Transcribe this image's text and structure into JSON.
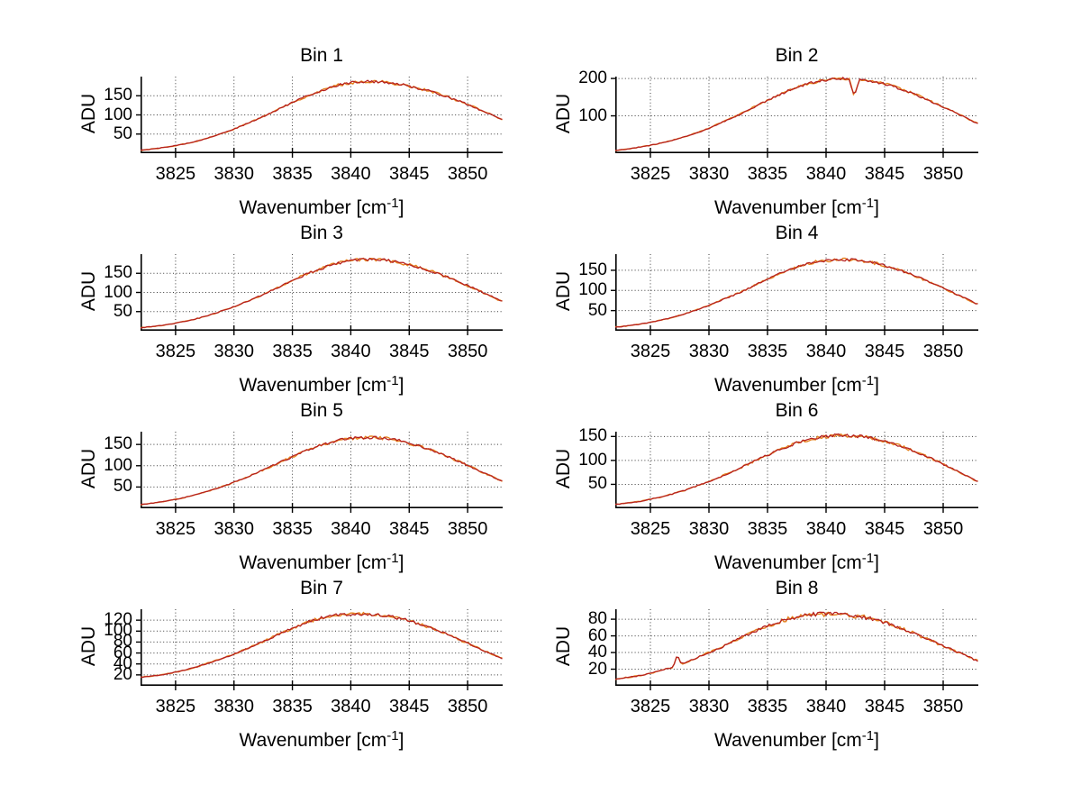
{
  "figure": {
    "background": "#ffffff",
    "line_color": "#b51f1f",
    "under_line_color": "#e5821e",
    "grid_color": "#3a3a3a",
    "axis_color": "#000000"
  },
  "labels": {
    "ylabel": "ADU",
    "xlabel_main": "Wavenumber [cm",
    "xlabel_sup": "-1",
    "xlabel_close": "]"
  },
  "chart_data": [
    {
      "type": "line",
      "title": "Bin 1",
      "ylabel": "ADU",
      "xlabel": "Wavenumber [cm^-1]",
      "xlim": [
        3822,
        3853
      ],
      "ylim": [
        0,
        200
      ],
      "xticks": [
        3825,
        3830,
        3835,
        3840,
        3845,
        3850
      ],
      "yticks": [
        50,
        100,
        150
      ],
      "grid": true,
      "x_start": 3822,
      "x_step": 1,
      "noise": 2.6,
      "spikes": [],
      "values": [
        8,
        11,
        15,
        20,
        26,
        33,
        42,
        52,
        63,
        76,
        89,
        103,
        118,
        132,
        146,
        158,
        169,
        178,
        184,
        187,
        187,
        185,
        181,
        175,
        168,
        160,
        150,
        139,
        127,
        114,
        101,
        88
      ]
    },
    {
      "type": "line",
      "title": "Bin 2",
      "ylabel": "ADU",
      "xlabel": "Wavenumber [cm^-1]",
      "xlim": [
        3822,
        3853
      ],
      "ylim": [
        0,
        205
      ],
      "xticks": [
        3825,
        3830,
        3835,
        3840,
        3845,
        3850
      ],
      "yticks": [
        100,
        200
      ],
      "grid": true,
      "x_start": 3822,
      "x_step": 1,
      "noise": 2.8,
      "spikes": [
        {
          "x": 3842.4,
          "dv": -46,
          "halfwidth": 0.45
        }
      ],
      "values": [
        8,
        11,
        16,
        21,
        28,
        36,
        45,
        55,
        67,
        81,
        95,
        110,
        126,
        141,
        156,
        170,
        181,
        190,
        196,
        200,
        200,
        197,
        192,
        185,
        176,
        165,
        152,
        138,
        124,
        109,
        94,
        80
      ]
    },
    {
      "type": "line",
      "title": "Bin 3",
      "ylabel": "ADU",
      "xlabel": "Wavenumber [cm^-1]",
      "xlim": [
        3822,
        3853
      ],
      "ylim": [
        0,
        200
      ],
      "xticks": [
        3825,
        3830,
        3835,
        3840,
        3845,
        3850
      ],
      "yticks": [
        50,
        100,
        150
      ],
      "grid": true,
      "x_start": 3822,
      "x_step": 1,
      "noise": 2.8,
      "spikes": [],
      "values": [
        8,
        11,
        15,
        20,
        26,
        33,
        42,
        52,
        63,
        75,
        88,
        102,
        117,
        131,
        145,
        157,
        168,
        177,
        183,
        186,
        186,
        184,
        179,
        172,
        164,
        154,
        143,
        131,
        118,
        104,
        90,
        77
      ]
    },
    {
      "type": "line",
      "title": "Bin 4",
      "ylabel": "ADU",
      "xlabel": "Wavenumber [cm^-1]",
      "xlim": [
        3822,
        3853
      ],
      "ylim": [
        0,
        190
      ],
      "xticks": [
        3825,
        3830,
        3835,
        3840,
        3845,
        3850
      ],
      "yticks": [
        50,
        100,
        150
      ],
      "grid": true,
      "x_start": 3822,
      "x_step": 1,
      "noise": 2.5,
      "spikes": [],
      "values": [
        9,
        12,
        16,
        21,
        27,
        34,
        43,
        52,
        63,
        75,
        87,
        100,
        114,
        128,
        141,
        152,
        162,
        170,
        174,
        176,
        176,
        174,
        169,
        162,
        153,
        143,
        131,
        119,
        106,
        92,
        79,
        66
      ]
    },
    {
      "type": "line",
      "title": "Bin 5",
      "ylabel": "ADU",
      "xlabel": "Wavenumber [cm^-1]",
      "xlim": [
        3822,
        3853
      ],
      "ylim": [
        0,
        180
      ],
      "xticks": [
        3825,
        3830,
        3835,
        3840,
        3845,
        3850
      ],
      "yticks": [
        50,
        100,
        150
      ],
      "grid": true,
      "x_start": 3822,
      "x_step": 1,
      "noise": 2.4,
      "spikes": [],
      "values": [
        9,
        12,
        16,
        21,
        27,
        34,
        42,
        51,
        61,
        72,
        84,
        96,
        109,
        121,
        133,
        144,
        153,
        160,
        164,
        166,
        166,
        164,
        160,
        153,
        145,
        136,
        125,
        113,
        101,
        88,
        76,
        64
      ]
    },
    {
      "type": "line",
      "title": "Bin 6",
      "ylabel": "ADU",
      "xlabel": "Wavenumber [cm^-1]",
      "xlim": [
        3822,
        3853
      ],
      "ylim": [
        0,
        160
      ],
      "xticks": [
        3825,
        3830,
        3835,
        3840,
        3845,
        3850
      ],
      "yticks": [
        50,
        100,
        150
      ],
      "grid": true,
      "x_start": 3822,
      "x_step": 1,
      "noise": 2.4,
      "spikes": [],
      "values": [
        8,
        11,
        14,
        19,
        24,
        31,
        38,
        47,
        56,
        66,
        77,
        88,
        100,
        111,
        122,
        132,
        140,
        146,
        150,
        152,
        152,
        150,
        146,
        140,
        133,
        124,
        114,
        104,
        92,
        80,
        68,
        56
      ]
    },
    {
      "type": "line",
      "title": "Bin 7",
      "ylabel": "ADU",
      "xlabel": "Wavenumber [cm^-1]",
      "xlim": [
        3822,
        3853
      ],
      "ylim": [
        0,
        140
      ],
      "xticks": [
        3825,
        3830,
        3835,
        3840,
        3845,
        3850
      ],
      "yticks": [
        20,
        40,
        60,
        80,
        100,
        120
      ],
      "grid": true,
      "x_start": 3822,
      "x_step": 1,
      "noise": 2.0,
      "spikes": [],
      "values": [
        16,
        18,
        21,
        25,
        30,
        36,
        43,
        50,
        58,
        67,
        76,
        86,
        96,
        105,
        114,
        121,
        127,
        130,
        131,
        131,
        130,
        128,
        124,
        119,
        112,
        105,
        96,
        87,
        78,
        68,
        59,
        50
      ]
    },
    {
      "type": "line",
      "title": "Bin 8",
      "ylabel": "ADU",
      "xlabel": "Wavenumber [cm^-1]",
      "xlim": [
        3822,
        3853
      ],
      "ylim": [
        0,
        92
      ],
      "xticks": [
        3825,
        3830,
        3835,
        3840,
        3845,
        3850
      ],
      "yticks": [
        20,
        40,
        60,
        80
      ],
      "grid": true,
      "x_start": 3822,
      "x_step": 1,
      "noise": 1.8,
      "spikes": [
        {
          "x": 3827.3,
          "dv": 13,
          "halfwidth": 0.35
        }
      ],
      "values": [
        8,
        10,
        12,
        15,
        19,
        23,
        28,
        34,
        40,
        46,
        53,
        60,
        66,
        72,
        77,
        81,
        84,
        86,
        86,
        86,
        85,
        83,
        80,
        76,
        71,
        66,
        60,
        54,
        48,
        42,
        36,
        30
      ]
    }
  ]
}
